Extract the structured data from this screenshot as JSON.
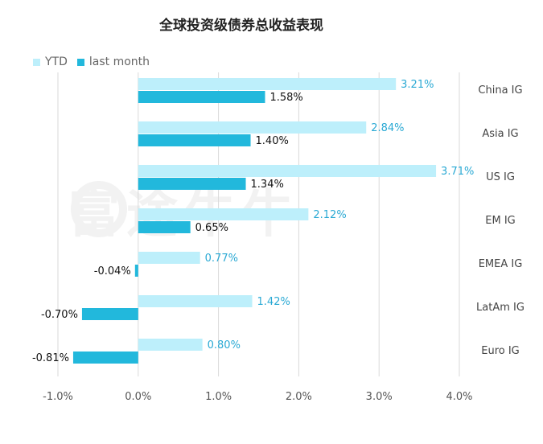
{
  "title": "全球投资级债券总收益表现",
  "watermark": "富途牛牛",
  "colors": {
    "ytd": "#bdeffb",
    "last_month": "#22b8dc",
    "ytd_label": "#2aa9d4",
    "axis": "#d9d9d9"
  },
  "chart_data": {
    "type": "bar",
    "orientation": "horizontal",
    "categories": [
      "China IG",
      "Asia IG",
      "US IG",
      "EM IG",
      "EMEA IG",
      "LatAm IG",
      "Euro IG"
    ],
    "series": [
      {
        "name": "YTD",
        "values": [
          3.21,
          2.84,
          3.71,
          2.12,
          0.77,
          1.42,
          0.8
        ],
        "labels": [
          "3.21%",
          "2.84%",
          "3.71%",
          "2.12%",
          "0.77%",
          "1.42%",
          "0.80%"
        ]
      },
      {
        "name": "last month",
        "values": [
          1.58,
          1.4,
          1.34,
          0.65,
          -0.04,
          -0.7,
          -0.81
        ],
        "labels": [
          "1.58%",
          "1.40%",
          "1.34%",
          "0.65%",
          "-0.04%",
          "-0.70%",
          "-0.81%"
        ]
      }
    ],
    "xlim": [
      -1.0,
      4.0
    ],
    "xticks": [
      "-1.0%",
      "0.0%",
      "1.0%",
      "2.0%",
      "3.0%",
      "4.0%"
    ],
    "grid": "vertical",
    "legend": "top-left"
  }
}
